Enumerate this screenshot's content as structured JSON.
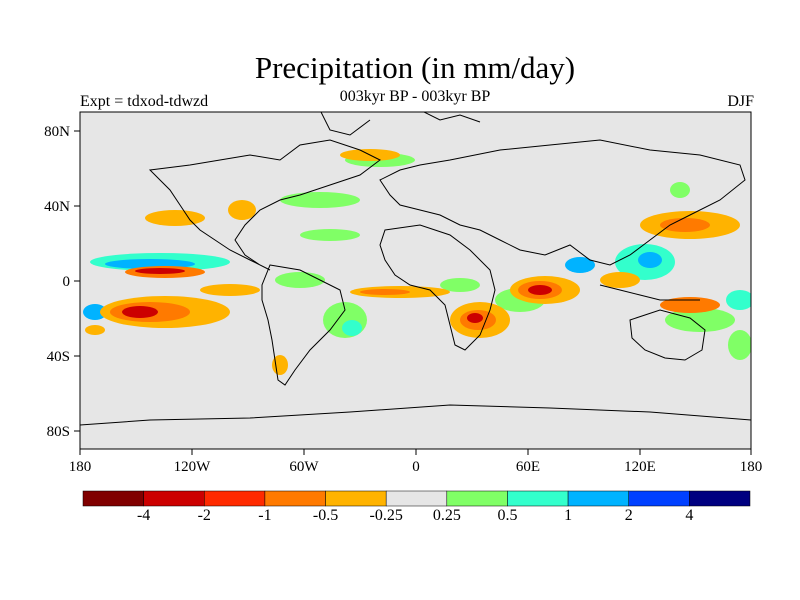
{
  "title": "Precipitation (in mm/day)",
  "subtitle": "003kyr BP - 003kyr BP",
  "experiment": "Expt = tdxod-tdwzd",
  "season": "DJF",
  "lat_ticks": [
    "80N",
    "40N",
    "0",
    "40S",
    "80S"
  ],
  "lon_ticks": [
    "180",
    "120W",
    "60W",
    "0",
    "60E",
    "120E",
    "180"
  ],
  "colorbar": {
    "colors": [
      "#800000",
      "#cc0000",
      "#ff2a00",
      "#ff7a00",
      "#ffb300",
      "#e6e6e6",
      "#80ff66",
      "#33ffcc",
      "#00b3ff",
      "#0040ff",
      "#000080"
    ],
    "labels": [
      "-4",
      "-2",
      "-1",
      "-0.5",
      "-0.25",
      "0.25",
      "0.5",
      "1",
      "2",
      "4"
    ]
  },
  "colors": {
    "land_sea_background": "#e6e6e6",
    "coastline": "#000000"
  }
}
